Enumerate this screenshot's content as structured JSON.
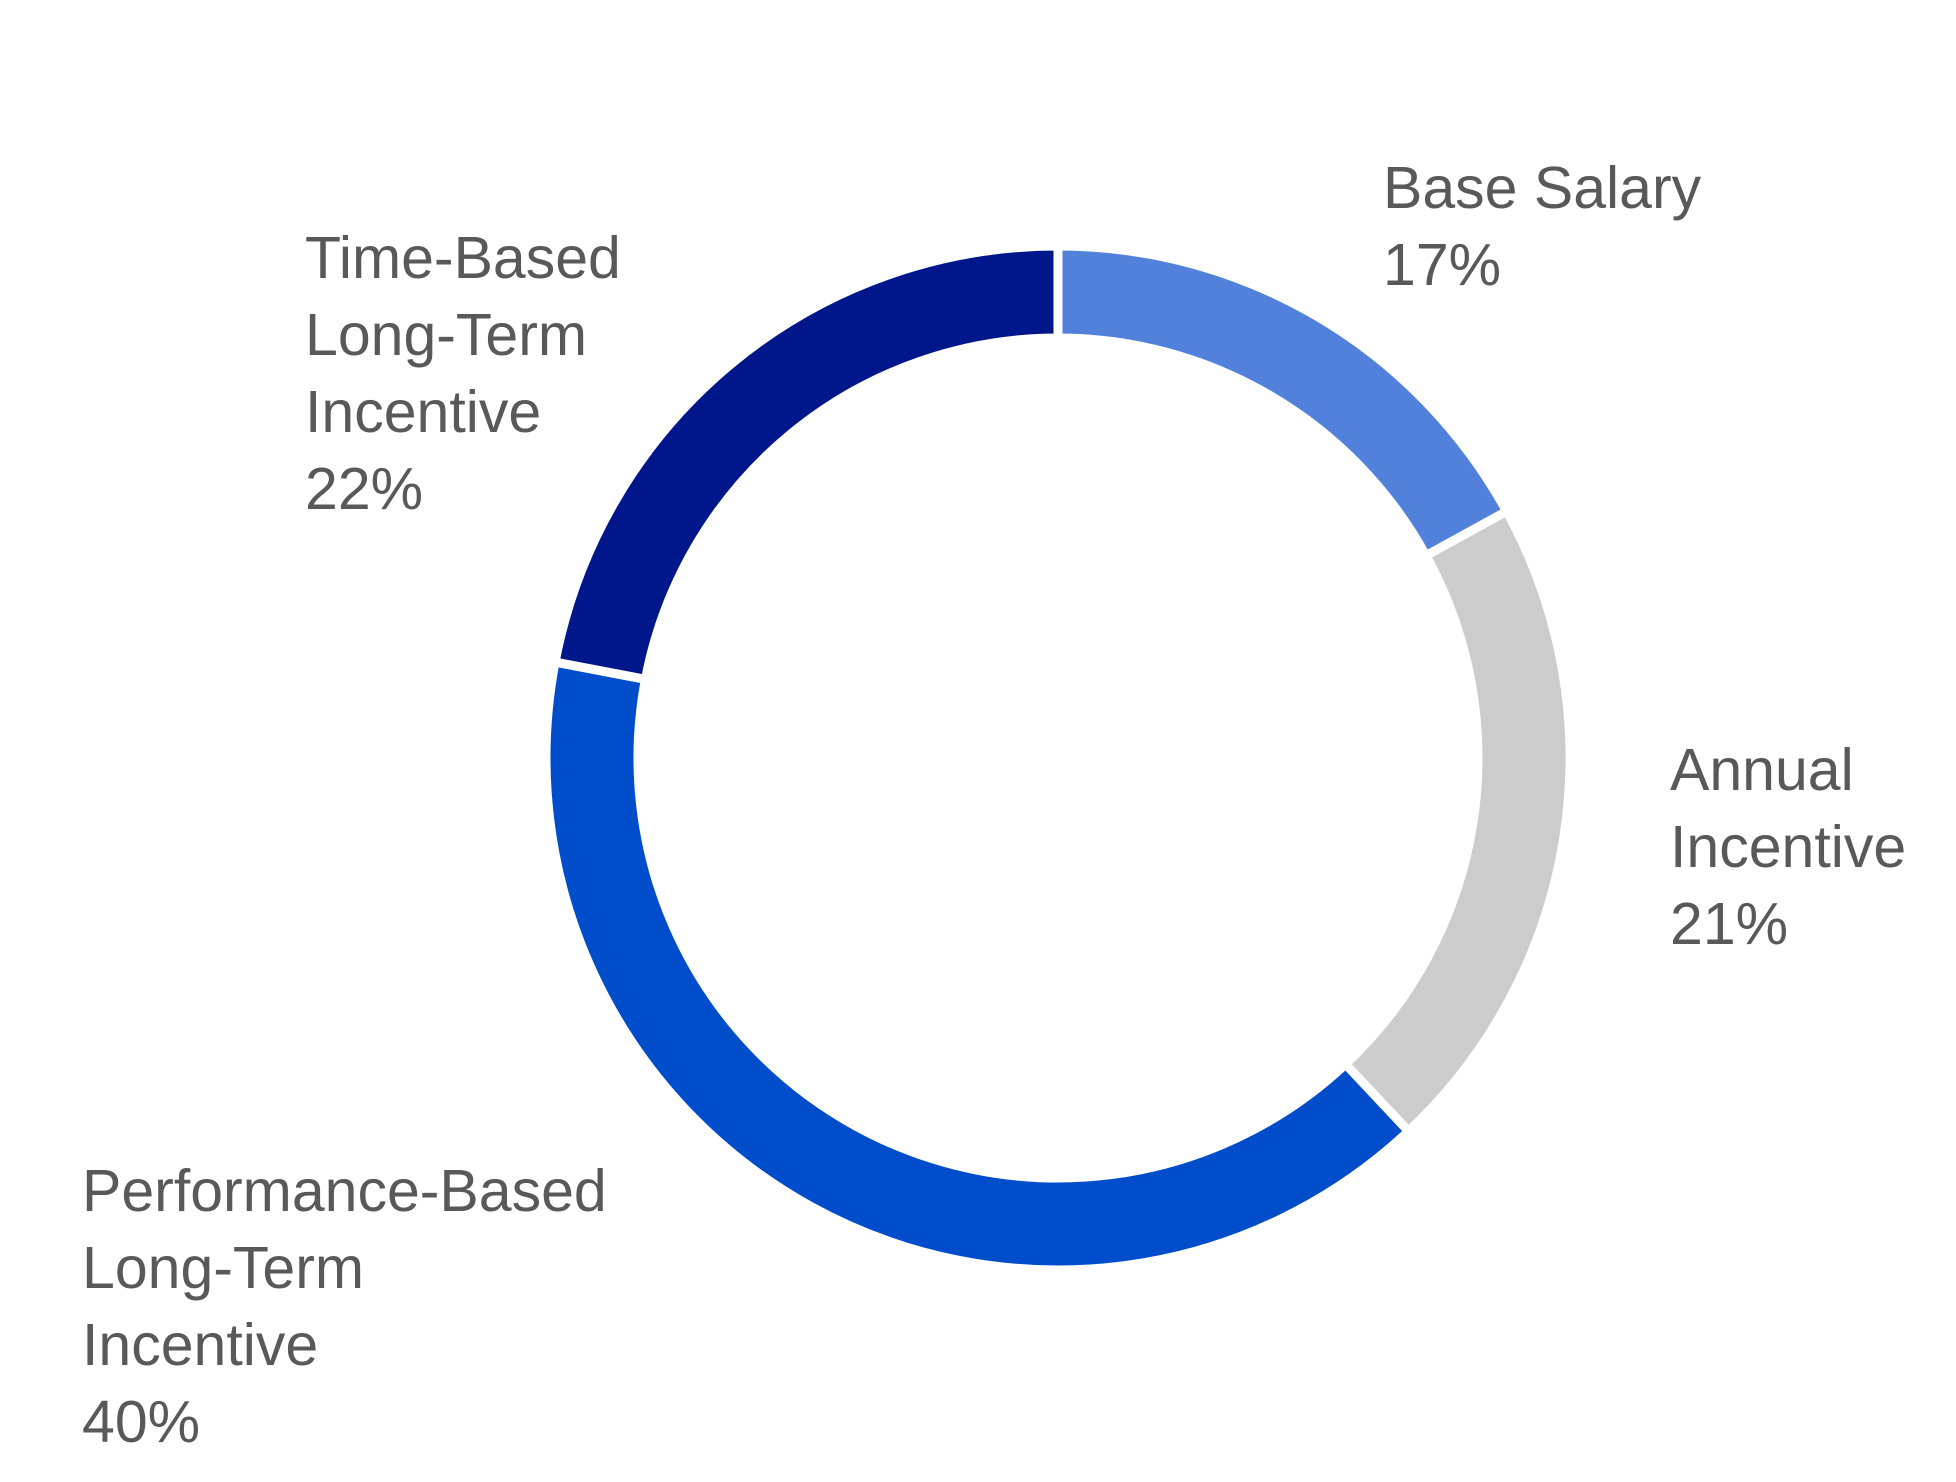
{
  "chart_data": {
    "type": "pie",
    "variant": "donut",
    "title": "",
    "slices": [
      {
        "label_lines": [
          "Base Salary"
        ],
        "percent_label": "17%",
        "value": 17,
        "color": "#5181DB"
      },
      {
        "label_lines": [
          "Annual",
          "Incentive"
        ],
        "percent_label": "21%",
        "value": 21,
        "color": "#CCCCCC"
      },
      {
        "label_lines": [
          "Performance-Based",
          "Long-Term",
          "Incentive"
        ],
        "percent_label": "40%",
        "value": 40,
        "color": "#004DCC"
      },
      {
        "label_lines": [
          "Time-Based",
          "Long-Term",
          "Incentive"
        ],
        "percent_label": "22%",
        "value": 22,
        "color": "#00178C"
      }
    ],
    "start_angle": "12 o'clock",
    "direction": "clockwise",
    "legend": "none"
  }
}
